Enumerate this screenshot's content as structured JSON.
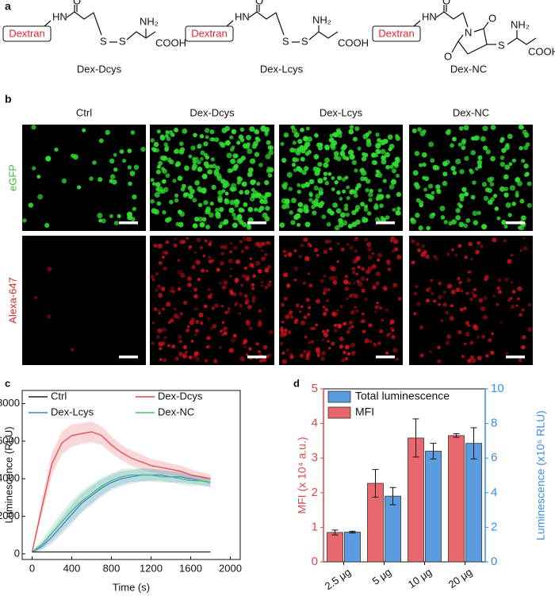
{
  "panel_a": {
    "label": "a",
    "structures": [
      {
        "name": "Dex-Dcys",
        "dextran": "Dextran",
        "atoms": [
          "HN",
          "O",
          "S",
          "S",
          "NH₂",
          "COOH"
        ]
      },
      {
        "name": "Dex-Lcys",
        "dextran": "Dextran",
        "atoms": [
          "HN",
          "O",
          "S",
          "S",
          "NH₂",
          "COOH"
        ]
      },
      {
        "name": "Dex-NC",
        "dextran": "Dextran",
        "atoms": [
          "HN",
          "O",
          "N",
          "O",
          "O",
          "S",
          "NH₂",
          "COOH"
        ]
      }
    ]
  },
  "panel_b": {
    "label": "b",
    "columns": [
      "Ctrl",
      "Dex-Dcys",
      "Dex-Lcys",
      "Dex-NC"
    ],
    "rows": [
      "eGFP",
      "Alexa-647"
    ]
  },
  "chart_data": [
    {
      "panel": "c",
      "type": "line",
      "x_label": "Time (s)",
      "y_label": "Luminescence (RLU)",
      "x": [
        0,
        100,
        200,
        300,
        400,
        500,
        600,
        700,
        800,
        900,
        1000,
        1100,
        1200,
        1300,
        1400,
        1500,
        1600,
        1700,
        1800
      ],
      "series": [
        {
          "name": "Ctrl",
          "color": "#222222",
          "values": [
            100,
            100,
            100,
            100,
            100,
            100,
            100,
            100,
            100,
            100,
            100,
            100,
            100,
            100,
            100,
            100,
            100,
            100,
            100
          ],
          "errors": [
            20,
            20,
            20,
            20,
            20,
            20,
            20,
            20,
            20,
            20,
            20,
            20,
            20,
            20,
            20,
            20,
            20,
            20,
            20
          ]
        },
        {
          "name": "Dex-Dcys",
          "color": "#e8474d",
          "values": [
            100,
            2500,
            4800,
            5900,
            6300,
            6400,
            6500,
            6300,
            5800,
            5400,
            5100,
            4900,
            4700,
            4600,
            4500,
            4400,
            4200,
            4100,
            4000
          ],
          "errors": [
            50,
            400,
            600,
            600,
            600,
            550,
            550,
            500,
            450,
            400,
            400,
            400,
            350,
            350,
            300,
            300,
            300,
            250,
            250
          ]
        },
        {
          "name": "Dex-Lcys",
          "color": "#4a7fd6",
          "values": [
            100,
            400,
            900,
            1500,
            2100,
            2700,
            3100,
            3500,
            3800,
            4000,
            4100,
            4200,
            4200,
            4200,
            4100,
            4100,
            4000,
            3900,
            3800
          ],
          "errors": [
            50,
            200,
            350,
            450,
            500,
            500,
            500,
            450,
            400,
            400,
            350,
            350,
            300,
            300,
            300,
            300,
            250,
            250,
            250
          ]
        },
        {
          "name": "Dex-NC",
          "color": "#4dbb7c",
          "values": [
            100,
            500,
            1100,
            1700,
            2300,
            2800,
            3200,
            3600,
            3900,
            4100,
            4200,
            4200,
            4200,
            4100,
            4100,
            4000,
            3900,
            3900,
            3800
          ],
          "errors": [
            50,
            250,
            400,
            500,
            550,
            550,
            500,
            450,
            400,
            400,
            350,
            350,
            350,
            300,
            300,
            300,
            300,
            250,
            250
          ]
        }
      ],
      "xlim": [
        -100,
        2100
      ],
      "ylim": [
        -300,
        8700
      ],
      "xticks": [
        0,
        400,
        800,
        1200,
        1600,
        2000
      ],
      "yticks": [
        0,
        2000,
        4000,
        6000,
        8000
      ]
    },
    {
      "panel": "d",
      "type": "bar",
      "y_label": "MFI (x 10⁴ a.u.)",
      "y2_label": "Luminescence (x10⁶ RLU)",
      "categories": [
        "2.5 μg",
        "5 μg",
        "10 μg",
        "20 μg"
      ],
      "series": [
        {
          "name": "MFI",
          "color": "#e8686e",
          "values": [
            0.85,
            2.27,
            3.58,
            3.65
          ],
          "errors": [
            0.07,
            0.4,
            0.55,
            0.05
          ]
        },
        {
          "name": "Total luminescence",
          "color": "#5b9be0",
          "axis": "y2",
          "values": [
            1.72,
            3.8,
            6.4,
            6.85
          ],
          "errors": [
            0.05,
            0.5,
            0.45,
            0.9
          ]
        }
      ],
      "ylim": [
        0,
        5
      ],
      "yticks": [
        0,
        1,
        2,
        3,
        4,
        5
      ],
      "y2lim": [
        0,
        10
      ],
      "y2ticks": [
        0,
        2,
        4,
        6,
        8,
        10
      ],
      "y_color": "#e0464e",
      "y2_color": "#3a8ee6"
    }
  ]
}
